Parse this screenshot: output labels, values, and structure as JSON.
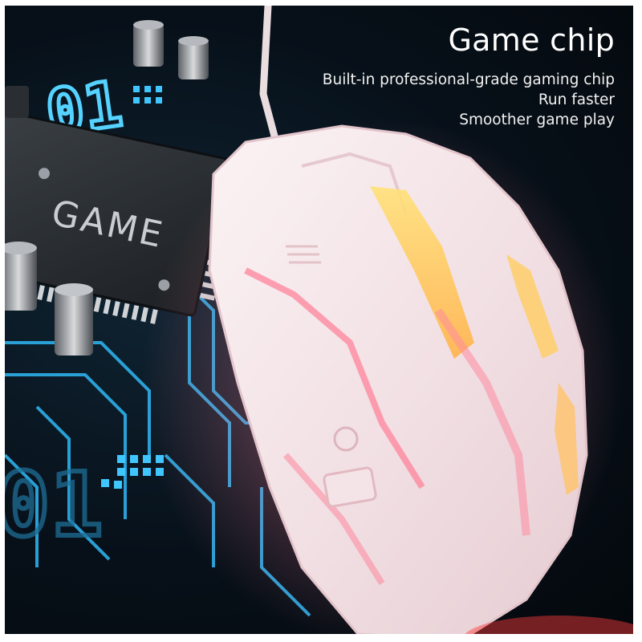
{
  "headline": {
    "title": "Game chip",
    "lines": [
      "Built-in professional-grade gaming chip",
      "Run faster",
      "Smoother game play"
    ]
  },
  "chip_label": "GAME",
  "circuit_digits": [
    "01",
    "01"
  ],
  "colors": {
    "background": "#05090d",
    "circuit_glow": "#3fc6ff",
    "mouse_body": "#f4e8ea",
    "mouse_glow_pink": "#ff8fa0",
    "mouse_glow_yellow": "#ffd35a"
  }
}
